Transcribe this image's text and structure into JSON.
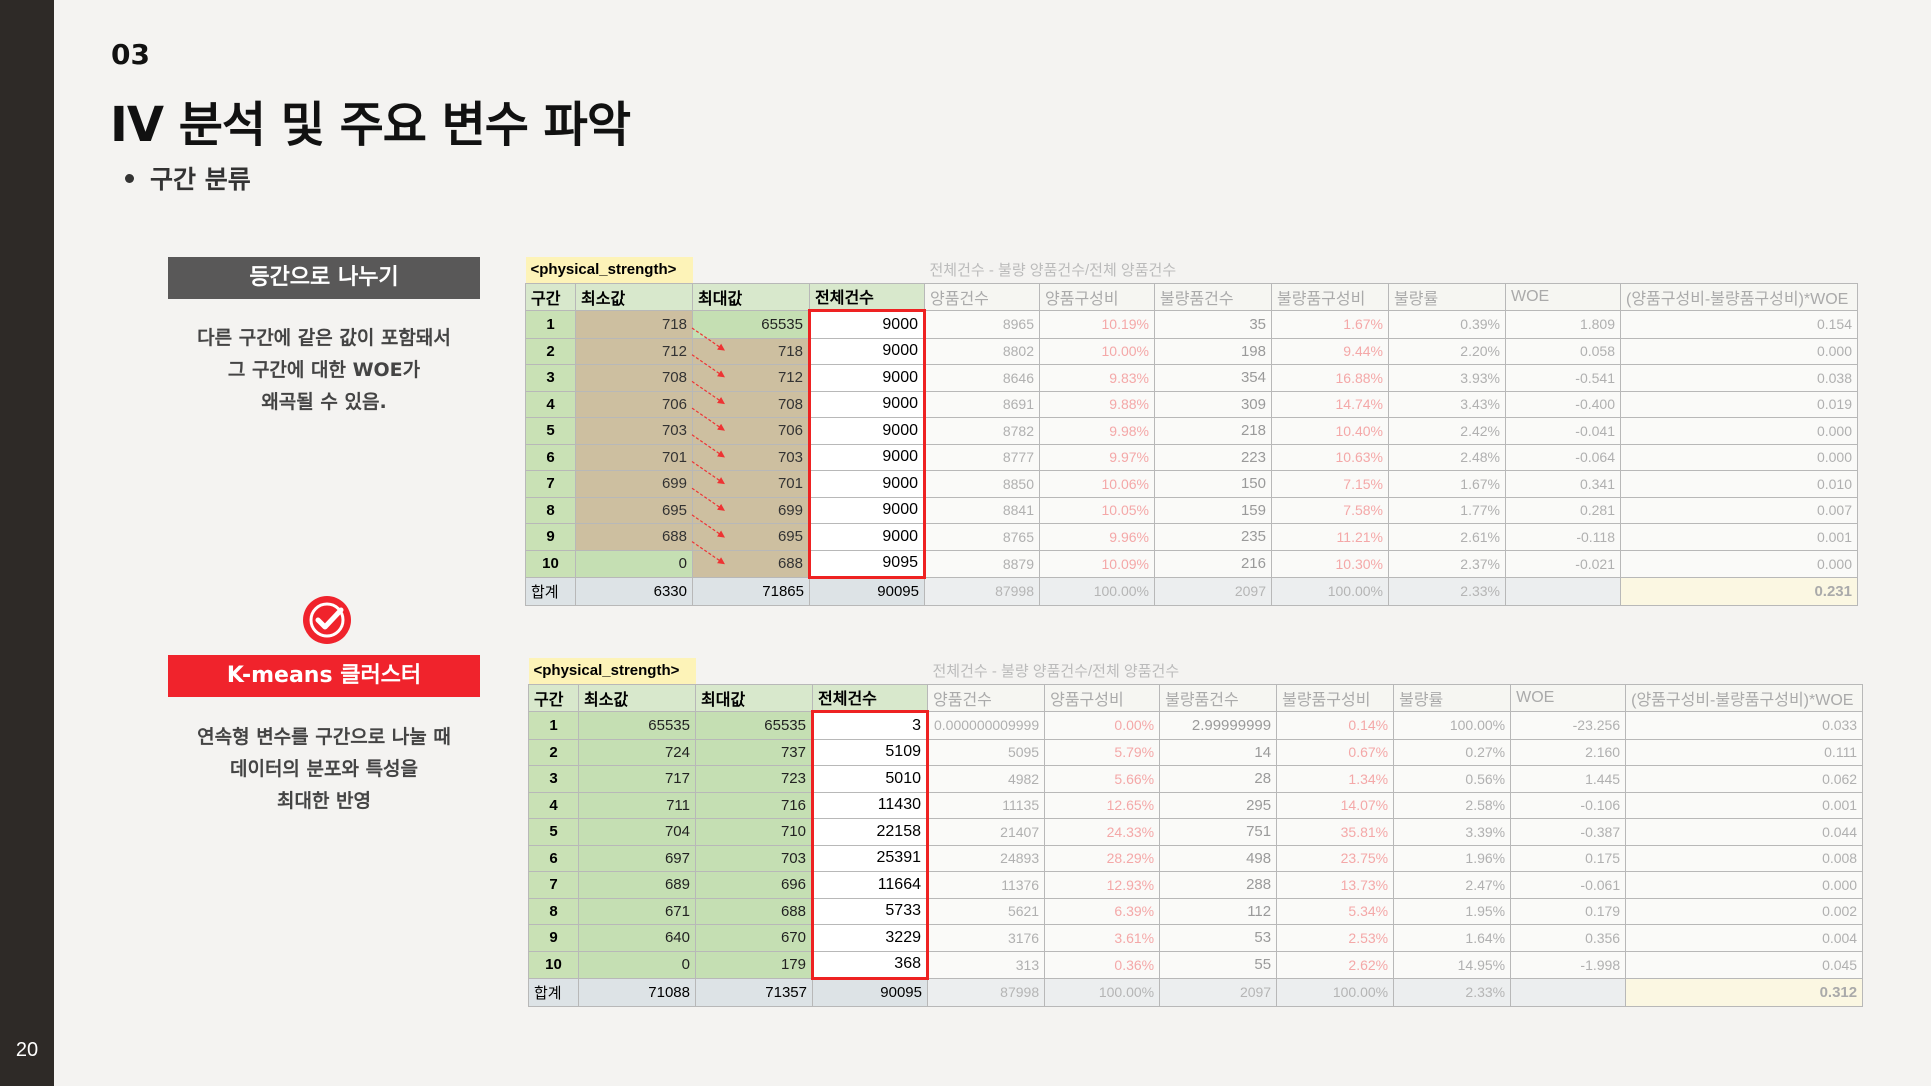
{
  "page_number": "20",
  "section_number": "03",
  "title": "IV 분석 및 주요 변수 파악",
  "bullet": "구간 분류",
  "colors": {
    "accent_red": "#f0232c",
    "sidebar": "#2e2a27",
    "gray_label": "#595858"
  },
  "method1": {
    "label": "등간으로 나누기",
    "desc": [
      "다른 구간에 같은 값이 포함돼서",
      "그 구간에 대한 WOE가",
      "왜곡될 수 있음."
    ]
  },
  "method2": {
    "label": "K-means 클러스터",
    "desc": [
      "연속형 변수를 구간으로 나눌 때",
      "데이터의 분포와 특성을",
      "최대한 반영"
    ],
    "check_icon": "check-circle-icon"
  },
  "columns": [
    "구간",
    "최소값",
    "최대값",
    "전체건수",
    "양품건수",
    "양품구성비",
    "불량품건수",
    "불량품구성비",
    "불량률",
    "WOE",
    "(양품구성비-불량품구성비)*WOE"
  ],
  "table1": {
    "variable": "<physical_strength>",
    "formula": "전체건수 - 불량 양품건수/전체 양품건수",
    "rows": [
      [
        "1",
        "718",
        "65535",
        "9000",
        "8965",
        "10.19%",
        "35",
        "1.67%",
        "0.39%",
        "1.809",
        "0.154"
      ],
      [
        "2",
        "712",
        "718",
        "9000",
        "8802",
        "10.00%",
        "198",
        "9.44%",
        "2.20%",
        "0.058",
        "0.000"
      ],
      [
        "3",
        "708",
        "712",
        "9000",
        "8646",
        "9.83%",
        "354",
        "16.88%",
        "3.93%",
        "-0.541",
        "0.038"
      ],
      [
        "4",
        "706",
        "708",
        "9000",
        "8691",
        "9.88%",
        "309",
        "14.74%",
        "3.43%",
        "-0.400",
        "0.019"
      ],
      [
        "5",
        "703",
        "706",
        "9000",
        "8782",
        "9.98%",
        "218",
        "10.40%",
        "2.42%",
        "-0.041",
        "0.000"
      ],
      [
        "6",
        "701",
        "703",
        "9000",
        "8777",
        "9.97%",
        "223",
        "10.63%",
        "2.48%",
        "-0.064",
        "0.000"
      ],
      [
        "7",
        "699",
        "701",
        "9000",
        "8850",
        "10.06%",
        "150",
        "7.15%",
        "1.67%",
        "0.341",
        "0.010"
      ],
      [
        "8",
        "695",
        "699",
        "9000",
        "8841",
        "10.05%",
        "159",
        "7.58%",
        "1.77%",
        "0.281",
        "0.007"
      ],
      [
        "9",
        "688",
        "695",
        "9000",
        "8765",
        "9.96%",
        "235",
        "11.21%",
        "2.61%",
        "-0.118",
        "0.001"
      ],
      [
        "10",
        "0",
        "688",
        "9095",
        "8879",
        "10.09%",
        "216",
        "10.30%",
        "2.37%",
        "-0.021",
        "0.000"
      ]
    ],
    "sum": [
      "합계",
      "6330",
      "71865",
      "90095",
      "87998",
      "100.00%",
      "2097",
      "100.00%",
      "2.33%",
      "",
      "0.231"
    ]
  },
  "table2": {
    "variable": "<physical_strength>",
    "formula": "전체건수 - 불량 양품건수/전체 양품건수",
    "rows": [
      [
        "1",
        "65535",
        "65535",
        "3",
        "0.000000009999",
        "0.00%",
        "2.99999999",
        "0.14%",
        "100.00%",
        "-23.256",
        "0.033"
      ],
      [
        "2",
        "724",
        "737",
        "5109",
        "5095",
        "5.79%",
        "14",
        "0.67%",
        "0.27%",
        "2.160",
        "0.111"
      ],
      [
        "3",
        "717",
        "723",
        "5010",
        "4982",
        "5.66%",
        "28",
        "1.34%",
        "0.56%",
        "1.445",
        "0.062"
      ],
      [
        "4",
        "711",
        "716",
        "11430",
        "11135",
        "12.65%",
        "295",
        "14.07%",
        "2.58%",
        "-0.106",
        "0.001"
      ],
      [
        "5",
        "704",
        "710",
        "22158",
        "21407",
        "24.33%",
        "751",
        "35.81%",
        "3.39%",
        "-0.387",
        "0.044"
      ],
      [
        "6",
        "697",
        "703",
        "25391",
        "24893",
        "28.29%",
        "498",
        "23.75%",
        "1.96%",
        "0.175",
        "0.008"
      ],
      [
        "7",
        "689",
        "696",
        "11664",
        "11376",
        "12.93%",
        "288",
        "13.73%",
        "2.47%",
        "-0.061",
        "0.000"
      ],
      [
        "8",
        "671",
        "688",
        "5733",
        "5621",
        "6.39%",
        "112",
        "5.34%",
        "1.95%",
        "0.179",
        "0.002"
      ],
      [
        "9",
        "640",
        "670",
        "3229",
        "3176",
        "3.61%",
        "53",
        "2.53%",
        "1.64%",
        "0.356",
        "0.004"
      ],
      [
        "10",
        "0",
        "179",
        "368",
        "313",
        "0.36%",
        "55",
        "2.62%",
        "14.95%",
        "-1.998",
        "0.045"
      ]
    ],
    "sum": [
      "합계",
      "71088",
      "71357",
      "90095",
      "87998",
      "100.00%",
      "2097",
      "100.00%",
      "2.33%",
      "",
      "0.312"
    ]
  }
}
